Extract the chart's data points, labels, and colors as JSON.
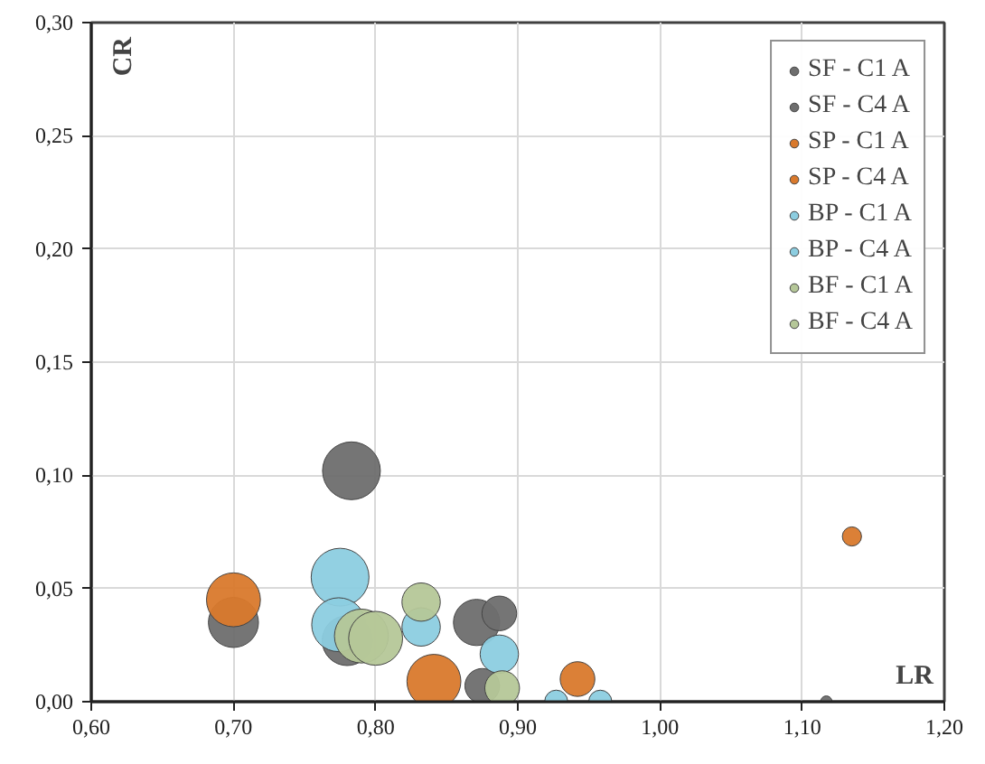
{
  "chart_data": {
    "type": "bubble",
    "xlabel": "LR",
    "ylabel": "CR",
    "xlim": [
      0.6,
      1.2
    ],
    "ylim": [
      0,
      0.3
    ],
    "xticks": [
      {
        "value": 0.6,
        "label": "0,60"
      },
      {
        "value": 0.7,
        "label": "0,70"
      },
      {
        "value": 0.8,
        "label": "0,80"
      },
      {
        "value": 0.9,
        "label": "0,90"
      },
      {
        "value": 1.0,
        "label": "1,00"
      },
      {
        "value": 1.1,
        "label": "1,10"
      },
      {
        "value": 1.2,
        "label": "1,20"
      }
    ],
    "yticks": [
      {
        "value": 0,
        "label": "0,00"
      },
      {
        "value": 0.05,
        "label": "0,05"
      },
      {
        "value": 0.1,
        "label": "0,10"
      },
      {
        "value": 0.15,
        "label": "0,15"
      },
      {
        "value": 0.2,
        "label": "0,20"
      },
      {
        "value": 0.25,
        "label": "0,25"
      },
      {
        "value": 0.3,
        "label": "0,30"
      }
    ],
    "grid": true,
    "legend": "top right",
    "series": [
      {
        "name": "SF - C1 A",
        "color": "#6e6e6e",
        "x": [
          0.783,
          0.871,
          0.875,
          1.117
        ],
        "values": [
          0.102,
          0.035,
          0.007,
          0.0
        ],
        "sizes": [
          1,
          0.64,
          0.36,
          0.04
        ]
      },
      {
        "name": "SF - C4 A",
        "color": "#6e6e6e",
        "x": [
          0.7,
          0.78,
          0.887
        ],
        "values": [
          0.035,
          0.027,
          0.039
        ],
        "sizes": [
          0.75,
          0.75,
          0.36
        ]
      },
      {
        "name": "SP - C1 A",
        "color": "#d9792c",
        "x": [
          0.7,
          0.841
        ],
        "values": [
          0.045,
          0.009
        ],
        "sizes": [
          0.87,
          0.87
        ]
      },
      {
        "name": "SP - C4 A",
        "color": "#d9792c",
        "x": [
          0.942,
          1.135
        ],
        "values": [
          0.01,
          0.073
        ],
        "sizes": [
          0.36,
          0.11
        ]
      },
      {
        "name": "BP - C1 A",
        "color": "#8ccde0",
        "x": [
          0.775,
          0.774,
          0.832
        ],
        "values": [
          0.055,
          0.034,
          0.033
        ],
        "sizes": [
          1,
          0.87,
          0.44
        ]
      },
      {
        "name": "BP - C4 A",
        "color": "#8ccde0",
        "x": [
          0.887,
          0.927,
          0.958
        ],
        "values": [
          0.021,
          0.0,
          0.0
        ],
        "sizes": [
          0.44,
          0.16,
          0.16
        ]
      },
      {
        "name": "BF - C1 A",
        "color": "#b5c798",
        "x": [
          0.79,
          0.832
        ],
        "values": [
          0.029,
          0.044
        ],
        "sizes": [
          0.87,
          0.44
        ]
      },
      {
        "name": "BF - C4 A",
        "color": "#b5c798",
        "x": [
          0.8,
          0.889
        ],
        "values": [
          0.028,
          0.006
        ],
        "sizes": [
          0.87,
          0.36
        ]
      }
    ]
  }
}
